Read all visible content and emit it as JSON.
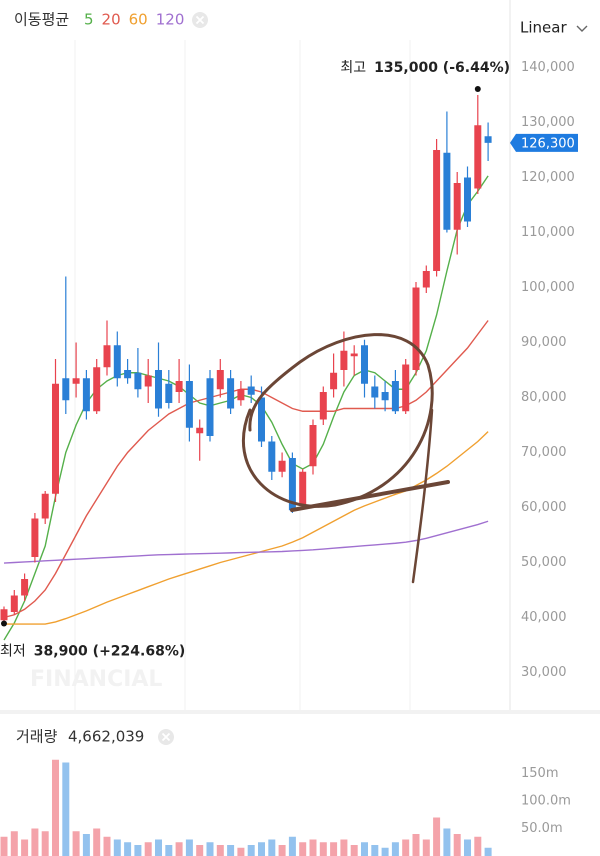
{
  "chart_data": [
    {
      "type": "candlestick",
      "legend_title": "이동평균",
      "scale": "Linear",
      "ylim": [
        25000,
        145000
      ],
      "yticks": [
        {
          "value": 30000,
          "label": "30,000"
        },
        {
          "value": 40000,
          "label": "40,000"
        },
        {
          "value": 50000,
          "label": "50,000"
        },
        {
          "value": 60000,
          "label": "60,000"
        },
        {
          "value": 70000,
          "label": "70,000"
        },
        {
          "value": 80000,
          "label": "80,000"
        },
        {
          "value": 90000,
          "label": "90,000"
        },
        {
          "value": 100000,
          "label": "100,000"
        },
        {
          "value": 110000,
          "label": "110,000"
        },
        {
          "value": 120000,
          "label": "120,000"
        },
        {
          "value": 130000,
          "label": "130,000"
        },
        {
          "value": 140000,
          "label": "140,000"
        }
      ],
      "up_color": "#e8434e",
      "down_color": "#2a7fd6",
      "open": [
        39500,
        41000,
        44000,
        51000,
        58000,
        62500,
        83500,
        82500,
        83500,
        77500,
        85500,
        89500,
        85000,
        84500,
        82000,
        85000,
        82500,
        81000,
        83000,
        73500,
        83500,
        81500,
        83500,
        79500,
        82000,
        80000,
        72000,
        66500,
        69000,
        60500,
        67500,
        76000,
        81500,
        85000,
        87500,
        89500,
        82000,
        81000,
        83000,
        77500,
        85000,
        100000,
        103000,
        124500,
        110500,
        120000,
        118000,
        127500
      ],
      "high": [
        42000,
        45000,
        48000,
        59000,
        63000,
        87000,
        102000,
        90000,
        85000,
        87000,
        94000,
        92000,
        87000,
        89000,
        87000,
        90000,
        85000,
        87000,
        86000,
        76000,
        85000,
        87000,
        85000,
        83000,
        84000,
        82000,
        73000,
        70000,
        70000,
        67000,
        76000,
        82000,
        88000,
        92000,
        89500,
        90500,
        84000,
        83000,
        85000,
        87000,
        101000,
        104000,
        127000,
        132000,
        121000,
        122000,
        135000,
        130000
      ],
      "low": [
        38900,
        40500,
        43000,
        50000,
        57000,
        61000,
        77000,
        80000,
        76000,
        77000,
        84000,
        82000,
        82500,
        80000,
        79000,
        76500,
        78000,
        79000,
        72000,
        68500,
        72000,
        80000,
        77000,
        78500,
        79000,
        71000,
        65000,
        65500,
        59000,
        60000,
        66000,
        75000,
        80000,
        82000,
        84000,
        80000,
        78000,
        77500,
        77000,
        77000,
        84000,
        99000,
        102000,
        110000,
        106000,
        111000,
        117000,
        123000
      ],
      "close": [
        41500,
        44000,
        47000,
        58000,
        62500,
        82500,
        79500,
        83500,
        77500,
        85500,
        89500,
        83500,
        83500,
        81500,
        84000,
        78000,
        79000,
        83000,
        74500,
        74500,
        73000,
        85000,
        78000,
        81500,
        80500,
        72000,
        66500,
        68500,
        59500,
        66500,
        75000,
        81000,
        84500,
        88500,
        88000,
        82500,
        80000,
        79500,
        77500,
        86000,
        100000,
        103000,
        125000,
        110500,
        119000,
        112000,
        129500,
        126300
      ],
      "last_label": "126,300",
      "series": [
        {
          "name": "5",
          "color": "#55b04a",
          "values": [
            35900,
            39000,
            43000,
            48000,
            53000,
            62000,
            70000,
            75000,
            79000,
            81500,
            83000,
            84000,
            84500,
            84500,
            84000,
            83500,
            83000,
            82000,
            80500,
            79000,
            78500,
            79000,
            79500,
            80500,
            80000,
            78500,
            75500,
            71500,
            68000,
            67000,
            68000,
            71500,
            76500,
            81000,
            84000,
            85000,
            84500,
            83000,
            81500,
            81500,
            84500,
            88500,
            95000,
            103000,
            110500,
            115000,
            117500,
            120300
          ]
        },
        {
          "name": "20",
          "color": "#e05a4f",
          "values": [
            40000,
            40500,
            41500,
            43000,
            45000,
            48000,
            51500,
            55000,
            58500,
            61500,
            64500,
            67500,
            70000,
            72000,
            74000,
            75500,
            77000,
            78000,
            79000,
            79500,
            80000,
            80500,
            81000,
            81500,
            81500,
            81000,
            80000,
            79000,
            78000,
            77500,
            77500,
            77500,
            77500,
            78000,
            78000,
            78000,
            78000,
            78000,
            78000,
            78500,
            79500,
            81000,
            83000,
            85000,
            87000,
            89000,
            91500,
            94000
          ]
        },
        {
          "name": "60",
          "color": "#f0a030",
          "values": [
            38800,
            38800,
            38800,
            38800,
            38800,
            39200,
            39800,
            40500,
            41200,
            42000,
            42800,
            43500,
            44200,
            44900,
            45600,
            46300,
            47000,
            47600,
            48200,
            48800,
            49400,
            50000,
            50500,
            51000,
            51500,
            52000,
            52500,
            53000,
            53700,
            54500,
            55500,
            56500,
            57500,
            58500,
            59500,
            60300,
            61000,
            61700,
            62400,
            63000,
            64000,
            65000,
            66200,
            67500,
            69000,
            70500,
            72000,
            73800
          ]
        },
        {
          "name": "120",
          "color": "#a070d0",
          "values": [
            49900,
            50000,
            50100,
            50200,
            50300,
            50400,
            50500,
            50600,
            50700,
            50800,
            50900,
            51000,
            51100,
            51200,
            51300,
            51400,
            51450,
            51500,
            51550,
            51600,
            51650,
            51700,
            51750,
            51800,
            51850,
            51900,
            51950,
            52000,
            52100,
            52200,
            52300,
            52450,
            52600,
            52750,
            52900,
            53050,
            53200,
            53350,
            53500,
            53700,
            54000,
            54400,
            54900,
            55400,
            55900,
            56400,
            56900,
            57500
          ]
        }
      ],
      "annotations": [
        {
          "label": "최고",
          "text": "135,000 (-6.44%)"
        },
        {
          "label": "최저",
          "text": "38,900 (+224.68%)"
        }
      ],
      "watermark": "FINANCIAL"
    },
    {
      "type": "bar",
      "title": "거래량",
      "summary": {
        "value": 4662039,
        "label": "4,662,039"
      },
      "up_color": "#f4a3aa",
      "down_color": "#93c2ee",
      "ylim": [
        0,
        200
      ],
      "yticks": [
        {
          "value": 50,
          "label": "50.0m"
        },
        {
          "value": 100,
          "label": "100.0m"
        },
        {
          "value": 150,
          "label": "150m"
        }
      ],
      "values": [
        35,
        45,
        30,
        50,
        45,
        175,
        170,
        45,
        40,
        50,
        35,
        30,
        25,
        20,
        25,
        30,
        20,
        25,
        30,
        20,
        25,
        20,
        20,
        15,
        20,
        25,
        30,
        20,
        35,
        25,
        30,
        25,
        25,
        30,
        20,
        25,
        20,
        15,
        25,
        30,
        40,
        30,
        70,
        50,
        40,
        30,
        35,
        15
      ]
    }
  ]
}
